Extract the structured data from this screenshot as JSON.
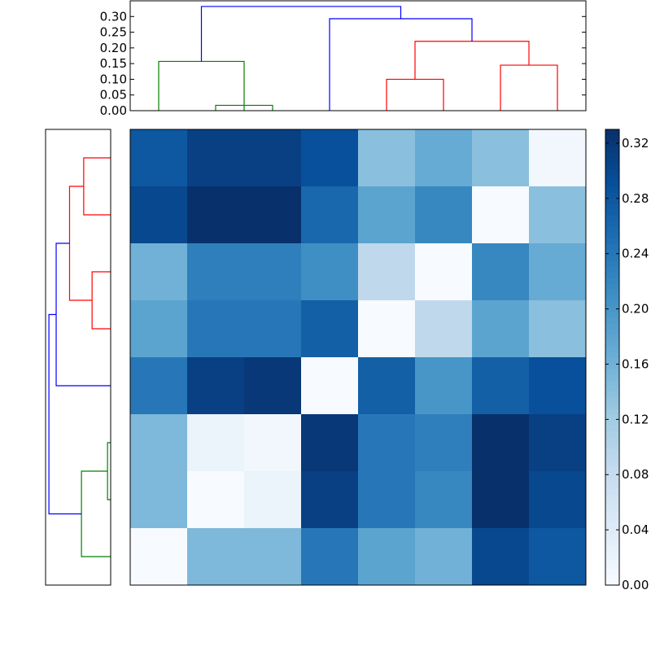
{
  "chart_data": {
    "type": "heatmap",
    "title": "",
    "heatmap": {
      "rows": 8,
      "cols": 8,
      "colormap": "Blues",
      "vmin": 0.0,
      "vmax": 0.33,
      "values": [
        [
          0.28,
          0.31,
          0.31,
          0.29,
          0.14,
          0.17,
          0.14,
          0.01
        ],
        [
          0.3,
          0.33,
          0.33,
          0.26,
          0.18,
          0.22,
          0.0,
          0.14
        ],
        [
          0.16,
          0.23,
          0.23,
          0.21,
          0.09,
          0.0,
          0.22,
          0.17
        ],
        [
          0.18,
          0.24,
          0.24,
          0.27,
          0.0,
          0.09,
          0.18,
          0.14
        ],
        [
          0.24,
          0.31,
          0.32,
          0.0,
          0.27,
          0.2,
          0.27,
          0.29
        ],
        [
          0.15,
          0.02,
          0.01,
          0.32,
          0.24,
          0.23,
          0.33,
          0.31
        ],
        [
          0.15,
          0.0,
          0.02,
          0.31,
          0.24,
          0.22,
          0.33,
          0.3
        ],
        [
          0.0,
          0.15,
          0.15,
          0.24,
          0.18,
          0.16,
          0.3,
          0.28
        ]
      ]
    },
    "top_dendrogram": {
      "orientation": "top",
      "ylim": [
        0,
        0.35
      ],
      "yticks": [
        "0.00",
        "0.05",
        "0.10",
        "0.15",
        "0.20",
        "0.25",
        "0.30"
      ],
      "links": [
        {
          "left": 0.5,
          "right": 2.0,
          "left_height": 0.0,
          "right_height": 0.0,
          "height": 0.157,
          "color": "#008000"
        },
        {
          "left": 1.5,
          "right": 2.5,
          "left_height": 0.0,
          "right_height": 0.0,
          "height": 0.017,
          "color": "#008000"
        },
        {
          "left": 4.5,
          "right": 5.5,
          "left_height": 0.0,
          "right_height": 0.0,
          "height": 0.1,
          "color": "#ff0000"
        },
        {
          "left": 6.5,
          "right": 7.5,
          "left_height": 0.0,
          "right_height": 0.0,
          "height": 0.145,
          "color": "#ff0000"
        },
        {
          "left": 5.0,
          "right": 7.0,
          "left_height": 0.1,
          "right_height": 0.145,
          "height": 0.221,
          "color": "#ff0000"
        },
        {
          "left": 3.5,
          "right": 6.0,
          "left_height": 0.0,
          "right_height": 0.221,
          "height": 0.293,
          "color": "#0000ff"
        },
        {
          "left": 1.25,
          "right": 4.75,
          "left_height": 0.157,
          "right_height": 0.293,
          "height": 0.332,
          "color": "#0000ff"
        }
      ]
    },
    "left_dendrogram": {
      "orientation": "left",
      "xlim": [
        0,
        0.35
      ],
      "links": [
        {
          "a": 0.5,
          "b": 1.5,
          "a_height": 0.0,
          "b_height": 0.0,
          "height": 0.145,
          "color": "#ff0000"
        },
        {
          "a": 2.5,
          "b": 3.5,
          "a_height": 0.0,
          "b_height": 0.0,
          "height": 0.1,
          "color": "#ff0000"
        },
        {
          "a": 1.0,
          "b": 3.0,
          "a_height": 0.145,
          "b_height": 0.1,
          "height": 0.221,
          "color": "#ff0000"
        },
        {
          "a": 2.0,
          "b": 4.5,
          "a_height": 0.221,
          "b_height": 0.0,
          "height": 0.293,
          "color": "#0000ff"
        },
        {
          "a": 5.5,
          "b": 6.5,
          "a_height": 0.0,
          "b_height": 0.0,
          "height": 0.017,
          "color": "#008000"
        },
        {
          "a": 6.0,
          "b": 7.5,
          "a_height": 0.017,
          "b_height": 0.0,
          "height": 0.157,
          "color": "#008000"
        },
        {
          "a": 3.25,
          "b": 6.75,
          "a_height": 0.293,
          "b_height": 0.157,
          "height": 0.332,
          "color": "#0000ff"
        }
      ]
    },
    "colorbar": {
      "vmin": 0.0,
      "vmax": 0.33,
      "ticks": [
        0.0,
        0.04,
        0.08,
        0.12,
        0.16,
        0.2,
        0.24,
        0.28,
        0.32
      ],
      "tick_labels": [
        "0.00",
        "0.04",
        "0.08",
        "0.12",
        "0.16",
        "0.20",
        "0.24",
        "0.28",
        "0.32"
      ]
    }
  }
}
